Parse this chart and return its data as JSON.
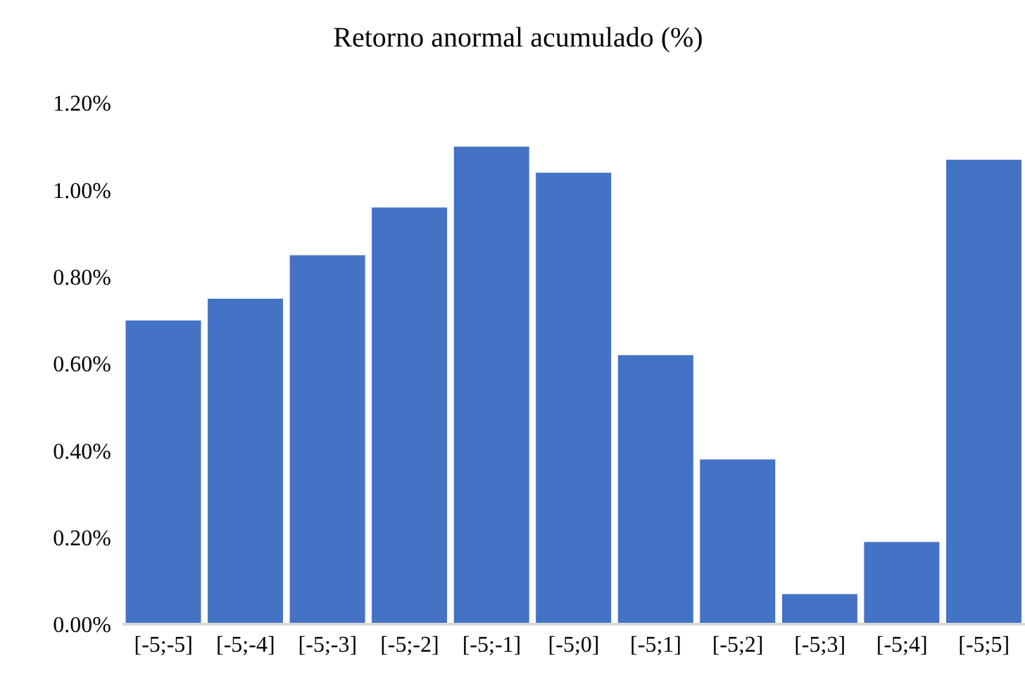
{
  "chart_data": {
    "type": "bar",
    "title": "Retorno anormal acumulado (%)",
    "categories": [
      "[-5;-5]",
      "[-5;-4]",
      "[-5;-3]",
      "[-5;-2]",
      "[-5;-1]",
      "[-5;0]",
      "[-5;1]",
      "[-5;2]",
      "[-5;3]",
      "[-5;4]",
      "[-5;5]"
    ],
    "values": [
      0.7,
      0.75,
      0.85,
      0.96,
      1.1,
      1.04,
      0.62,
      0.38,
      0.07,
      0.19,
      1.07
    ],
    "color": "#4472c4",
    "ylim": [
      0,
      1.2
    ],
    "yticks": [
      {
        "value": 0,
        "label": "0.00%"
      },
      {
        "value": 0.2,
        "label": "0.20%"
      },
      {
        "value": 0.4,
        "label": "0.40%"
      },
      {
        "value": 0.6,
        "label": "0.60%"
      },
      {
        "value": 0.8,
        "label": "0.80%"
      },
      {
        "value": 1.0,
        "label": "1.00%"
      },
      {
        "value": 1.2,
        "label": "1.20%"
      }
    ],
    "grid": false,
    "legend": false
  }
}
